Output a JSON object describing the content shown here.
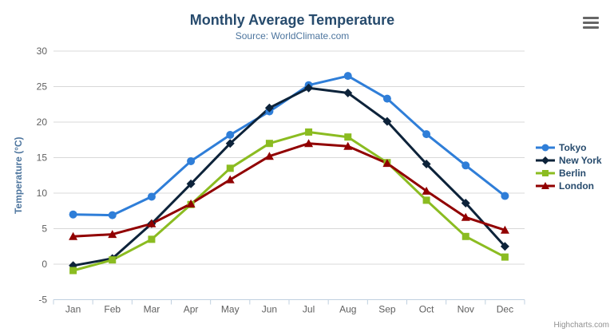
{
  "chart": {
    "title": "Monthly Average Temperature",
    "subtitle": "Source: WorldClimate.com",
    "credits": "Highcharts.com",
    "export_icon": "hamburger-menu-icon"
  },
  "colors": {
    "title": "#274b6d",
    "subtitle": "#4d759e",
    "axis_title": "#4d759e",
    "axis_labels": "#606060",
    "gridline": "#d8d8d8",
    "axis_line": "#c0d0e0",
    "legend_text": "#274b6d",
    "credits_text": "#909090",
    "background": "#ffffff"
  },
  "chart_data": {
    "type": "line",
    "title": "Monthly Average Temperature",
    "subtitle": "Source: WorldClimate.com",
    "xlabel": "",
    "ylabel": "Temperature (°C)",
    "categories": [
      "Jan",
      "Feb",
      "Mar",
      "Apr",
      "May",
      "Jun",
      "Jul",
      "Aug",
      "Sep",
      "Oct",
      "Nov",
      "Dec"
    ],
    "yticks": [
      -5,
      0,
      5,
      10,
      15,
      20,
      25,
      30
    ],
    "ylim": [
      -5,
      30
    ],
    "grid": true,
    "legend_position": "right",
    "series": [
      {
        "name": "Tokyo",
        "color": "#2f7ed8",
        "marker": "circle",
        "values": [
          7.0,
          6.9,
          9.5,
          14.5,
          18.2,
          21.5,
          25.2,
          26.5,
          23.3,
          18.3,
          13.9,
          9.6
        ]
      },
      {
        "name": "New York",
        "color": "#0d233a",
        "marker": "diamond",
        "values": [
          -0.2,
          0.8,
          5.7,
          11.3,
          17.0,
          22.0,
          24.8,
          24.1,
          20.1,
          14.1,
          8.6,
          2.5
        ]
      },
      {
        "name": "Berlin",
        "color": "#8bbc21",
        "marker": "square",
        "values": [
          -0.9,
          0.6,
          3.5,
          8.4,
          13.5,
          17.0,
          18.6,
          17.9,
          14.3,
          9.0,
          3.9,
          1.0
        ]
      },
      {
        "name": "London",
        "color": "#910000",
        "marker": "triangle",
        "values": [
          3.9,
          4.2,
          5.7,
          8.5,
          11.9,
          15.2,
          17.0,
          16.6,
          14.2,
          10.3,
          6.6,
          4.8
        ]
      }
    ]
  }
}
